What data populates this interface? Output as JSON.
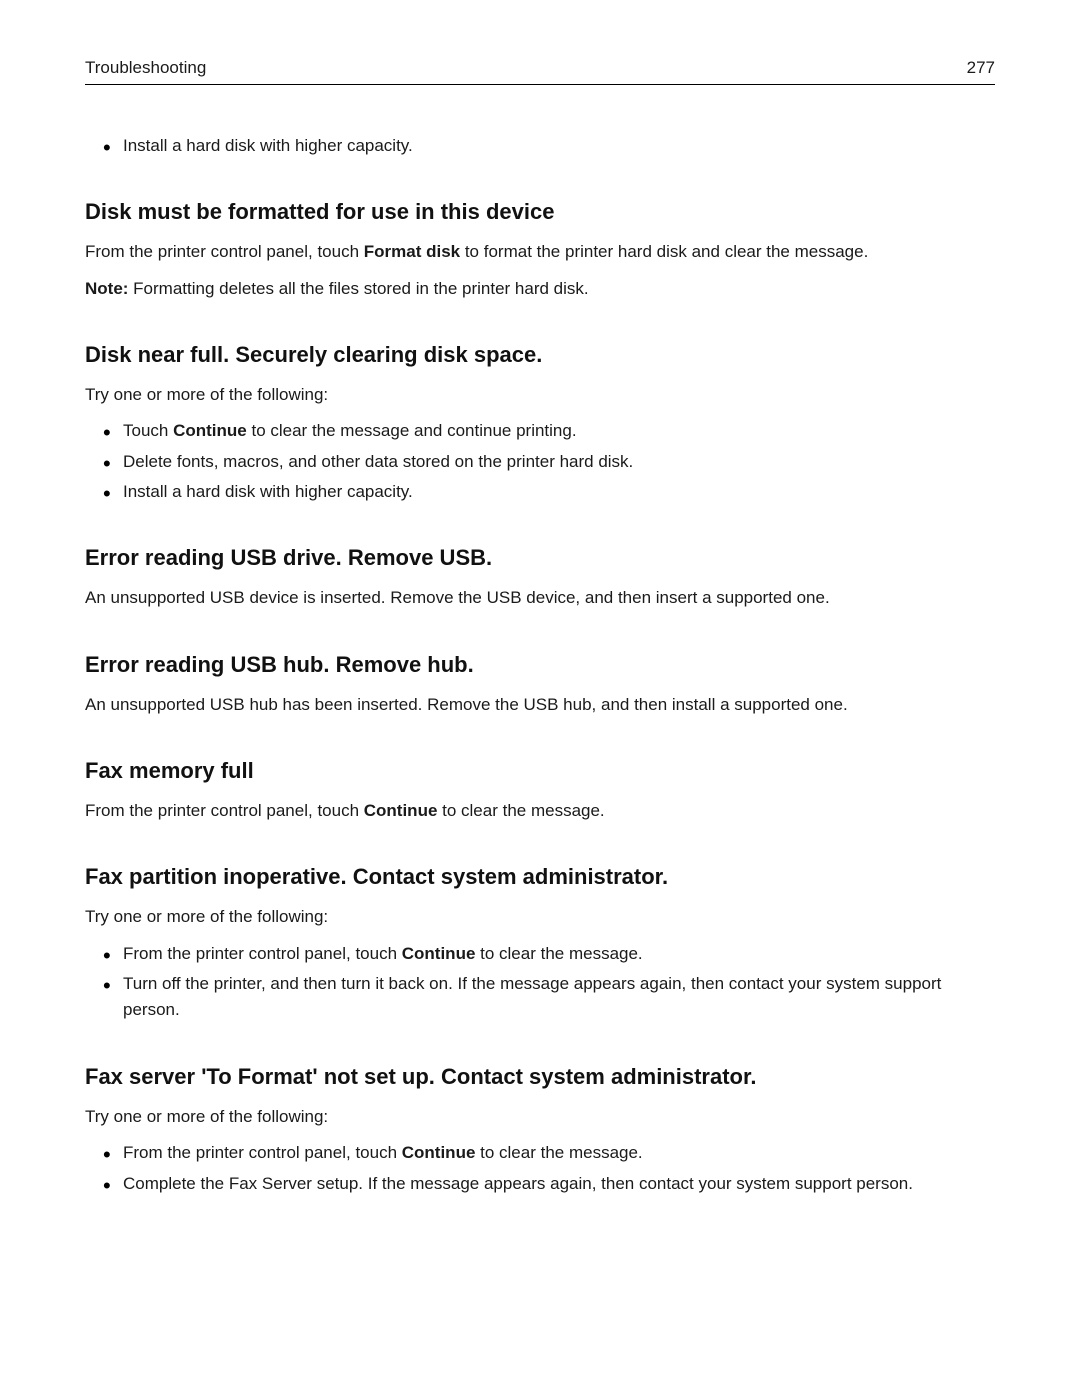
{
  "header": {
    "section_title": "Troubleshooting",
    "page_number": "277"
  },
  "top_bullets": [
    "Install a hard disk with higher capacity."
  ],
  "sections": {
    "s1": {
      "heading": "Disk must be formatted for use in this device",
      "p1_prefix": "From the printer control panel, touch ",
      "p1_bold": "Format disk",
      "p1_suffix": " to format the printer hard disk and clear the message.",
      "note_label": "Note:",
      "note_text": " Formatting deletes all the files stored in the printer hard disk."
    },
    "s2": {
      "heading": "Disk near full. Securely clearing disk space.",
      "intro": "Try one or more of the following:",
      "b1_prefix": "Touch ",
      "b1_bold": "Continue",
      "b1_suffix": " to clear the message and continue printing.",
      "b2": "Delete fonts, macros, and other data stored on the printer hard disk.",
      "b3": "Install a hard disk with higher capacity."
    },
    "s3": {
      "heading": "Error reading USB drive. Remove USB.",
      "p": "An unsupported USB device is inserted. Remove the USB device, and then insert a supported one."
    },
    "s4": {
      "heading": "Error reading USB hub. Remove hub.",
      "p": "An unsupported USB hub has been inserted. Remove the USB hub, and then install a supported one."
    },
    "s5": {
      "heading": "Fax memory full",
      "p_prefix": "From the printer control panel, touch ",
      "p_bold": "Continue",
      "p_suffix": " to clear the message."
    },
    "s6": {
      "heading": "Fax partition inoperative. Contact system administrator.",
      "intro": "Try one or more of the following:",
      "b1_prefix": "From the printer control panel, touch ",
      "b1_bold": "Continue",
      "b1_suffix": " to clear the message.",
      "b2": "Turn off the printer, and then turn it back on. If the message appears again, then contact your system support person."
    },
    "s7": {
      "heading": "Fax server 'To Format' not set up. Contact system administrator.",
      "intro": "Try one or more of the following:",
      "b1_prefix": "From the printer control panel, touch ",
      "b1_bold": "Continue",
      "b1_suffix": " to clear the message.",
      "b2": "Complete the Fax Server setup. If the message appears again, then contact your system support person."
    }
  }
}
